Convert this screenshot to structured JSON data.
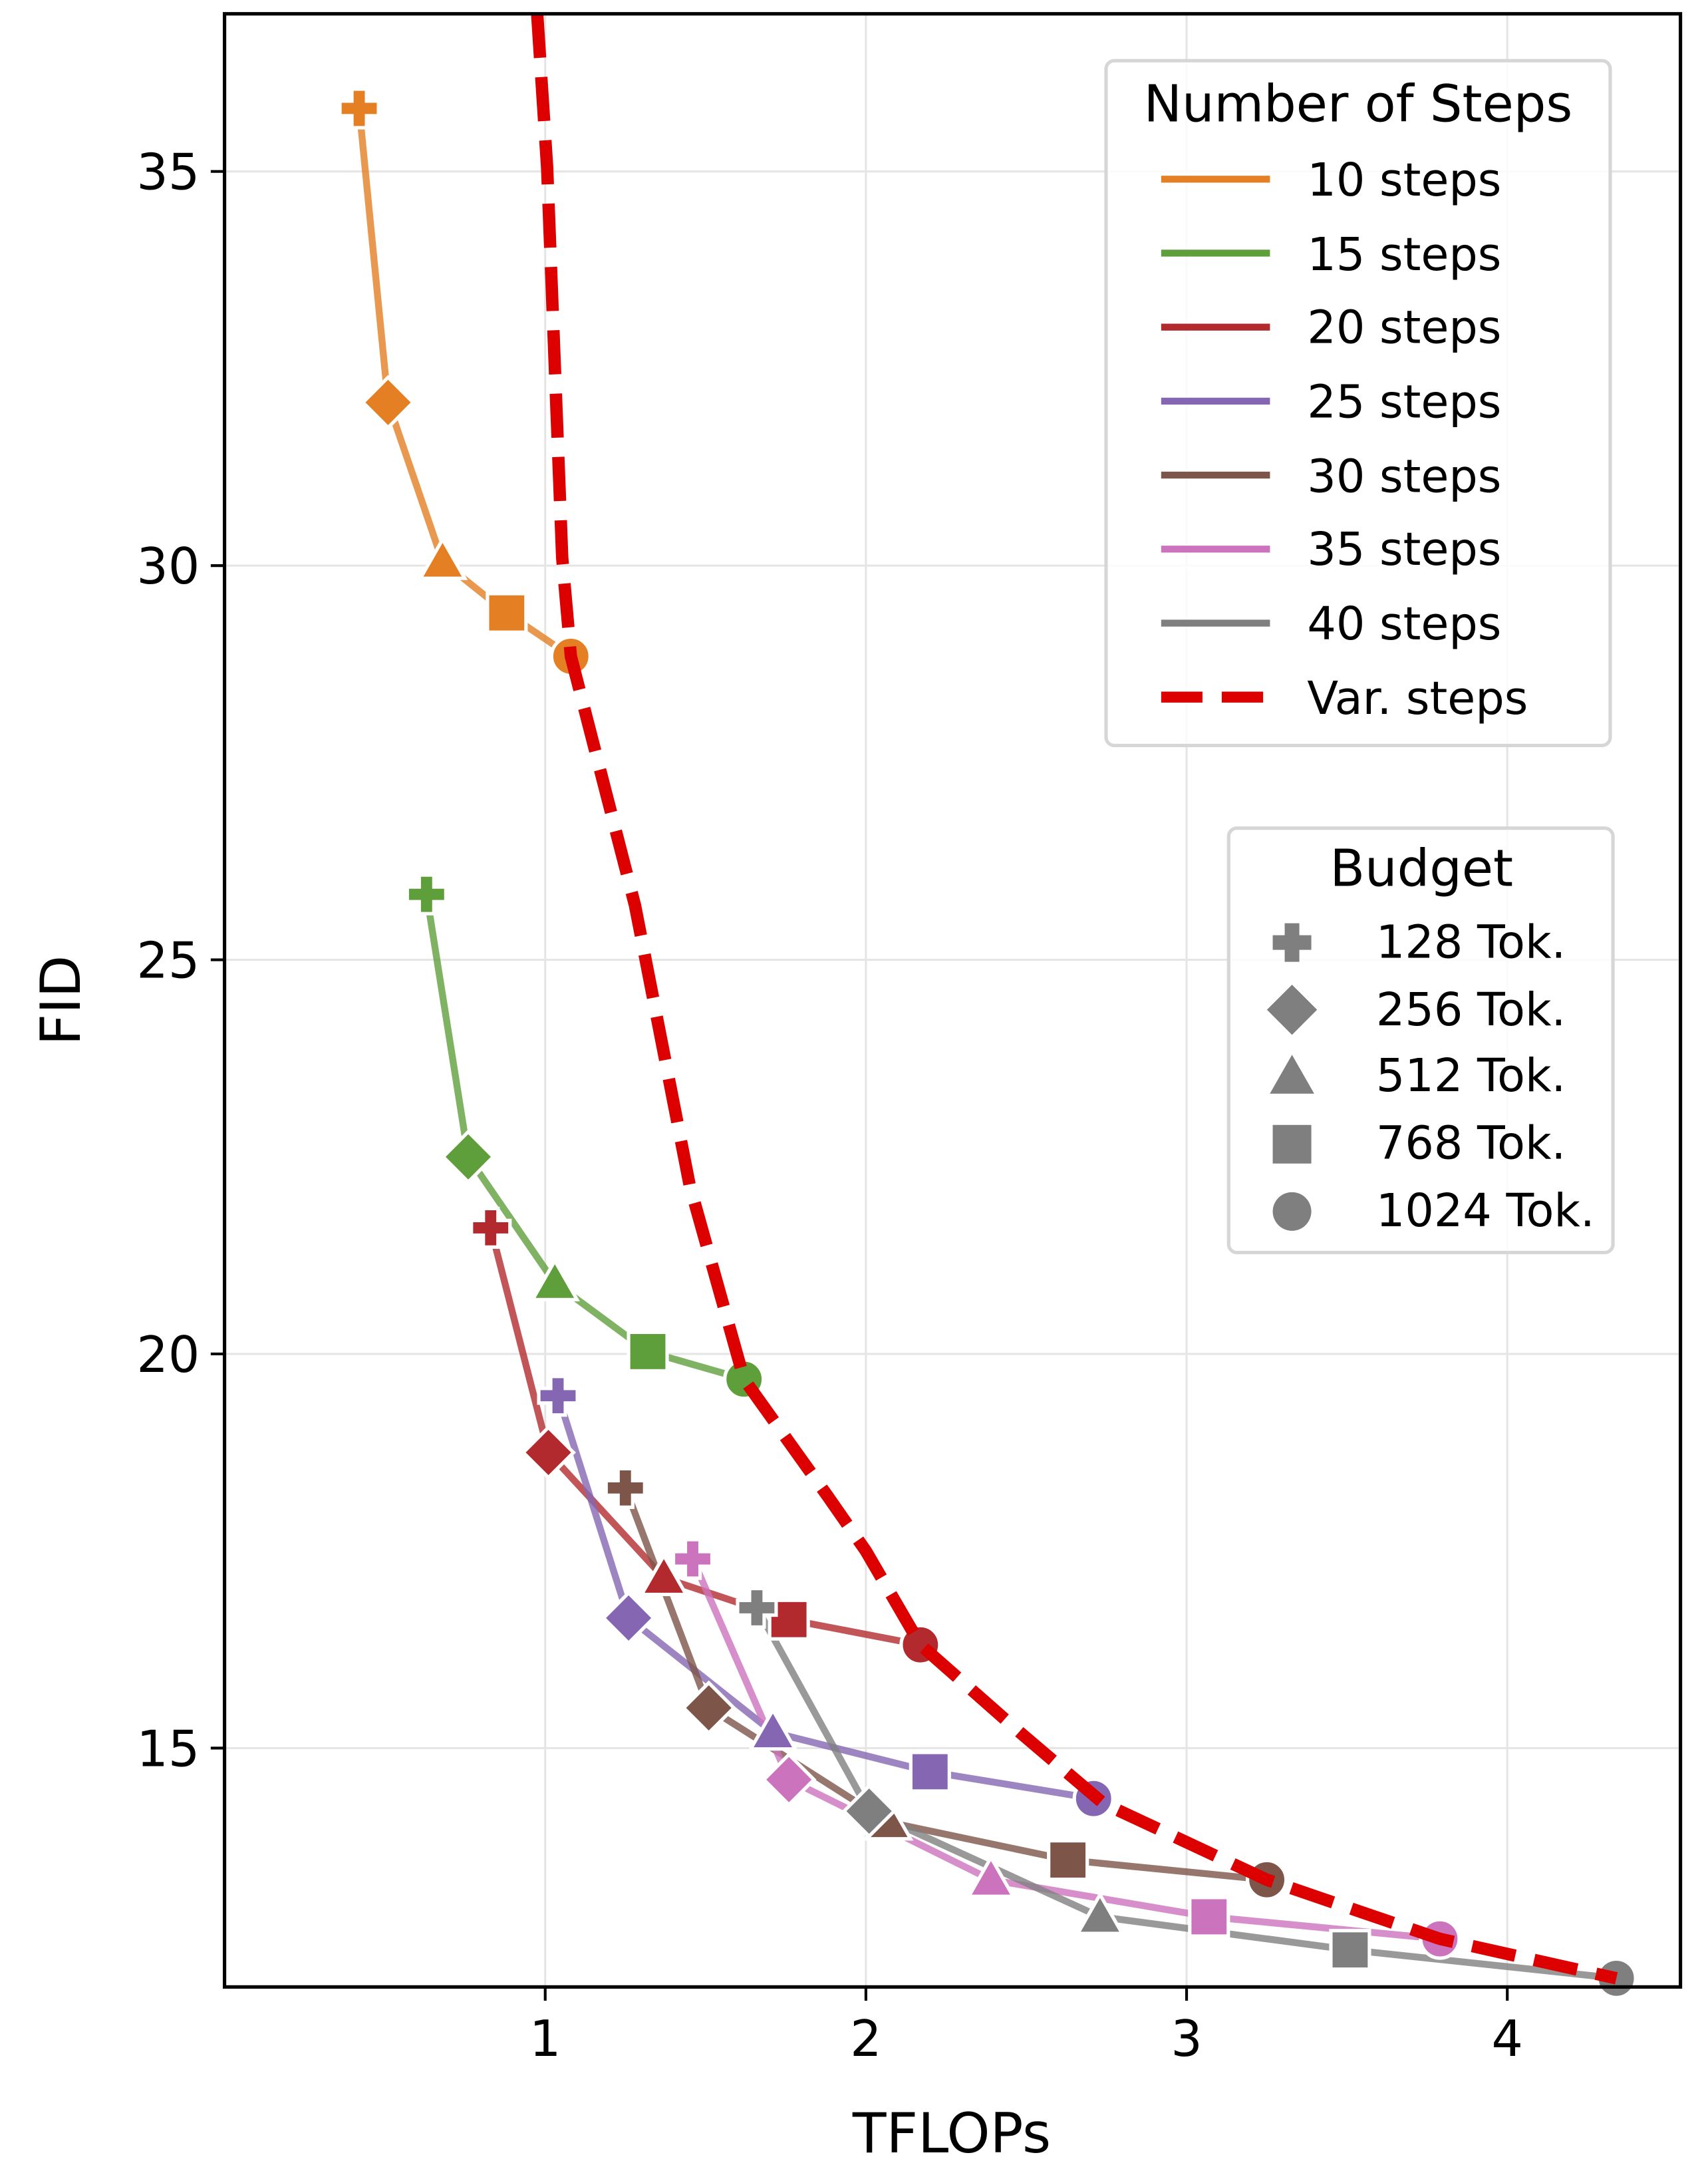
{
  "chart_data": {
    "type": "line",
    "xlabel": "TFLOPs",
    "ylabel": "FID",
    "xlim": [
      0,
      4.54
    ],
    "ylim": [
      11.97,
      37.0
    ],
    "xticks": [
      "1",
      "2",
      "3",
      "4"
    ],
    "xtick_values": [
      1,
      2,
      3,
      4
    ],
    "yticks": [
      "15",
      "20",
      "25",
      "30",
      "35"
    ],
    "ytick_values": [
      15,
      20,
      25,
      30,
      35
    ],
    "grid": true,
    "budgets": [
      "128 Tok.",
      "256 Tok.",
      "512 Tok.",
      "768 Tok.",
      "1024 Tok."
    ],
    "budget_markers": [
      "plus",
      "diamond",
      "triangle",
      "square",
      "circle"
    ],
    "series": [
      {
        "name": "10 steps",
        "color": "#e47f23",
        "x": [
          0.42,
          0.51,
          0.68,
          0.88,
          1.08
        ],
        "y": [
          35.8,
          32.07,
          30.05,
          29.4,
          28.85
        ]
      },
      {
        "name": "15 steps",
        "color": "#5f9f3b",
        "x": [
          0.63,
          0.76,
          1.03,
          1.32,
          1.62
        ],
        "y": [
          25.83,
          22.5,
          20.9,
          20.03,
          19.68
        ]
      },
      {
        "name": "20 steps",
        "color": "#b22a2e",
        "x": [
          0.83,
          1.01,
          1.37,
          1.76,
          2.17
        ],
        "y": [
          21.6,
          18.75,
          17.16,
          16.63,
          16.31
        ]
      },
      {
        "name": "25 steps",
        "color": "#8466b3",
        "x": [
          1.04,
          1.26,
          1.71,
          2.2,
          2.71
        ],
        "y": [
          19.47,
          16.65,
          15.2,
          14.7,
          14.36
        ]
      },
      {
        "name": "30 steps",
        "color": "#7d5549",
        "x": [
          1.25,
          1.51,
          2.07,
          2.63,
          3.25
        ],
        "y": [
          18.3,
          15.51,
          14.06,
          13.58,
          13.33
        ]
      },
      {
        "name": "35 steps",
        "color": "#cc73bd",
        "x": [
          1.46,
          1.76,
          2.39,
          3.07,
          3.79
        ],
        "y": [
          17.4,
          14.6,
          13.33,
          12.86,
          12.58
        ]
      },
      {
        "name": "40 steps",
        "color": "#7f7f7f",
        "x": [
          1.66,
          2.01,
          2.73,
          3.51,
          4.34
        ],
        "y": [
          16.78,
          14.2,
          12.86,
          12.44,
          12.08
        ]
      },
      {
        "name": "Var. steps",
        "color": "#dc0000",
        "dashed": true,
        "x": [
          0.975,
          1.006,
          1.053,
          1.08,
          1.28,
          1.45,
          1.62,
          1.88,
          2.0,
          2.17,
          2.48,
          2.74,
          3.25,
          3.79,
          4.34
        ],
        "y": [
          37.0,
          35.05,
          30.1,
          28.85,
          25.69,
          22.15,
          19.68,
          18.2,
          17.5,
          16.31,
          15.2,
          14.3,
          13.33,
          12.58,
          12.08
        ]
      }
    ],
    "legend": {
      "title": "Number of Steps",
      "placement": "top-right"
    },
    "marker_legend": {
      "title": "Budget",
      "placement": "right"
    }
  }
}
